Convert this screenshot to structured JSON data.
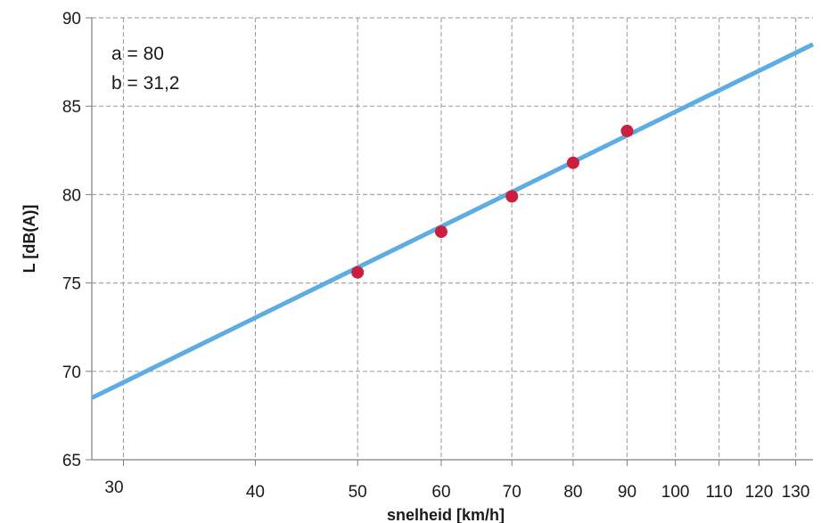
{
  "chart_data": {
    "type": "scatter",
    "xscale": "log",
    "xlabel": "snelheid [km/h]",
    "ylabel": "L [dB(A)]",
    "xlim": [
      28,
      135
    ],
    "ylim": [
      65,
      90
    ],
    "x_ticks": [
      30,
      40,
      50,
      60,
      70,
      80,
      90,
      100,
      110,
      120,
      130
    ],
    "x_tick_labels": [
      "30",
      "40",
      "50",
      "60",
      "70",
      "80",
      "90",
      "100",
      "110",
      "120",
      "130"
    ],
    "y_ticks": [
      65,
      70,
      75,
      80,
      85,
      90
    ],
    "y_tick_labels": [
      "65",
      "70",
      "75",
      "80",
      "85",
      "90"
    ],
    "grid": true,
    "annotations": [
      "a = 80",
      "b = 31,2"
    ],
    "series": [
      {
        "kind": "line",
        "color": "#5dade2",
        "x": [
          28,
          135
        ],
        "y": [
          68.5,
          88.5
        ]
      },
      {
        "kind": "scatter",
        "color": "#cc1f3f",
        "x": [
          50,
          60,
          70,
          80,
          90
        ],
        "y": [
          75.6,
          77.9,
          79.9,
          81.8,
          83.6
        ]
      }
    ]
  }
}
